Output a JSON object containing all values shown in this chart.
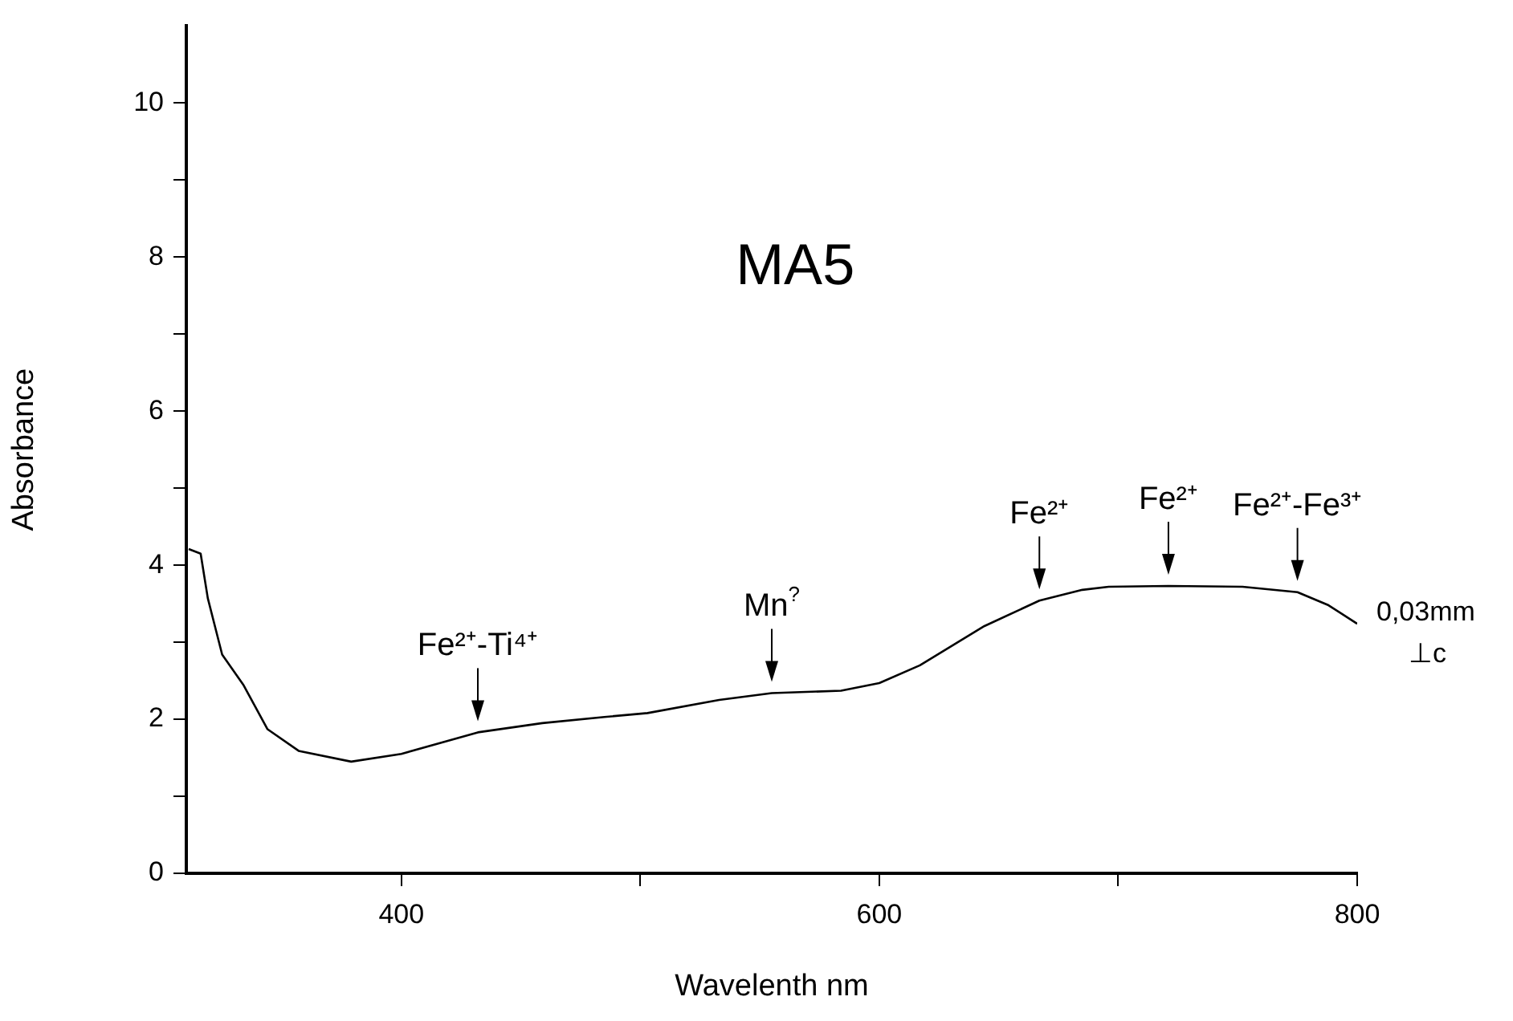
{
  "chart_data": {
    "type": "line",
    "title": "MA5",
    "xlabel": "Wavelenth nm",
    "ylabel": "Absorbance",
    "x": [
      311,
      316,
      319,
      325,
      334,
      344,
      357,
      379,
      400,
      432,
      459,
      485,
      503,
      533,
      555,
      584,
      600,
      617,
      644,
      667,
      685,
      696,
      721,
      752,
      775,
      788,
      800
    ],
    "series": [
      {
        "color": "#000000",
        "values": [
          4.21,
          4.15,
          3.57,
          2.84,
          2.44,
          1.87,
          1.59,
          1.45,
          1.55,
          1.83,
          1.95,
          2.03,
          2.08,
          2.25,
          2.34,
          2.37,
          2.47,
          2.7,
          3.21,
          3.54,
          3.68,
          3.72,
          3.73,
          3.72,
          3.65,
          3.48,
          3.24
        ]
      }
    ],
    "xlim": [
      310,
      800
    ],
    "xticks": [
      400,
      {
        "value": 500,
        "label": null
      },
      600,
      {
        "value": 700,
        "label": null
      },
      800
    ],
    "ylim": [
      0,
      11
    ],
    "yticks": [
      0,
      {
        "value": 1,
        "label": null
      },
      2,
      {
        "value": 3,
        "label": null
      },
      4,
      {
        "value": 5,
        "label": null
      },
      6,
      {
        "value": 7,
        "label": null
      },
      8,
      {
        "value": 9,
        "label": null
      },
      10
    ],
    "grid": false,
    "legend": false,
    "marker": "none",
    "line_style": "solid",
    "annotations": [
      {
        "text": "Fe²⁺-Ti⁴⁺",
        "x": 432,
        "y": 1.83
      },
      {
        "text": "Mn$^{?}$",
        "x": 555,
        "y": 2.34
      },
      {
        "text": "Fe²⁺",
        "x": 667,
        "y": 3.54
      },
      {
        "text": "Fe²⁺",
        "x": 721,
        "y": 3.73
      },
      {
        "text": "Fe²⁺-Fe³⁺",
        "x": 775,
        "y": 3.65
      },
      "0,03mm",
      "⊥c"
    ]
  }
}
